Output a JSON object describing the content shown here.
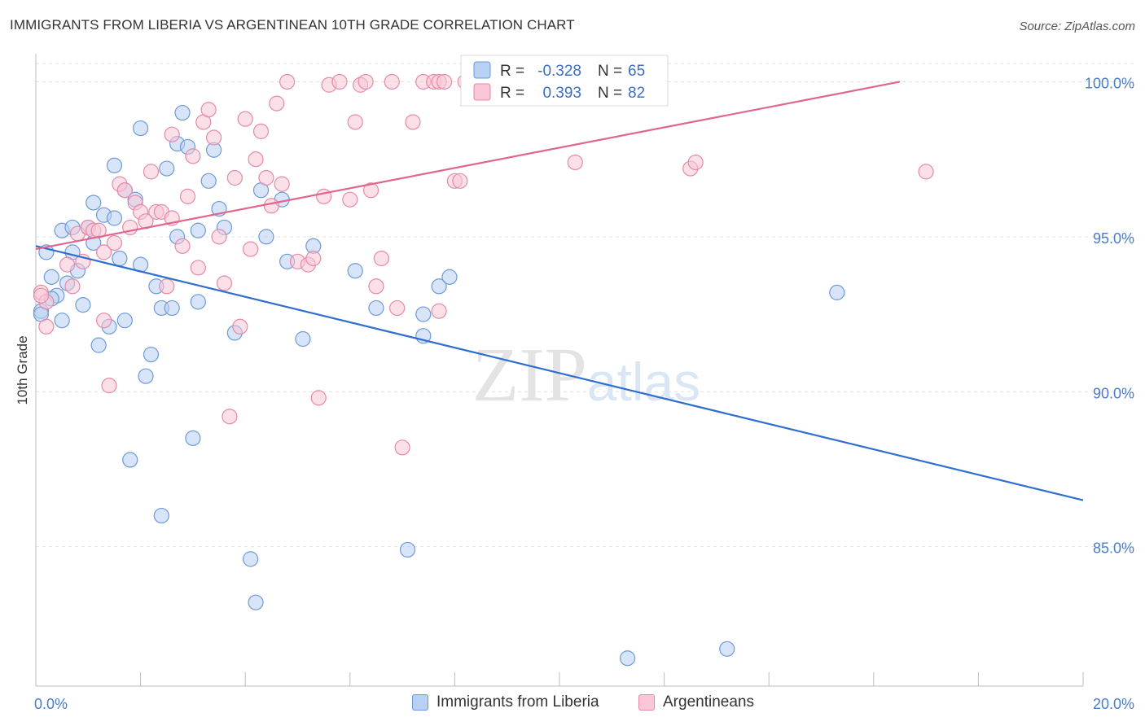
{
  "title": "IMMIGRANTS FROM LIBERIA VS ARGENTINEAN 10TH GRADE CORRELATION CHART",
  "source": "Source: ZipAtlas.com",
  "watermark": "ZIPatlas",
  "legend_box": {
    "rows": [
      {
        "r_label": "R =",
        "r_value": "-0.328",
        "n_label": "N =",
        "n_value": "65",
        "fill": "#b8d0f2",
        "stroke": "#6d9ad8"
      },
      {
        "r_label": "R =",
        "r_value": "0.393",
        "n_label": "N =",
        "n_value": "82",
        "fill": "#f8c6d6",
        "stroke": "#e58aa8"
      }
    ]
  },
  "bottom_legend": [
    {
      "label": "Immigrants from Liberia",
      "fill": "#b8d0f2",
      "stroke": "#6d9ad8"
    },
    {
      "label": "Argentineans",
      "fill": "#f8c6d6",
      "stroke": "#e58aa8"
    }
  ],
  "chart_data": {
    "type": "scatter",
    "ylabel": "10th Grade",
    "xlim": [
      0,
      20
    ],
    "ylim": [
      80.5,
      100.8
    ],
    "x_tick_labels": [
      {
        "value": 0,
        "label": "0.0%"
      },
      {
        "value": 20,
        "label": "20.0%"
      }
    ],
    "y_ticks": [
      {
        "value": 100,
        "label": "100.0%"
      },
      {
        "value": 95,
        "label": "95.0%"
      },
      {
        "value": 90,
        "label": "90.0%"
      },
      {
        "value": 85,
        "label": "85.0%"
      }
    ],
    "grid": "horizontal dashed",
    "series": [
      {
        "name": "Immigrants from Liberia",
        "color": "#6d9ad8",
        "fill": "#b8d0f2",
        "trend_color": "#2f6fcf",
        "trend": {
          "x": [
            0,
            20
          ],
          "y": [
            94.7,
            86.5
          ]
        },
        "points": [
          [
            0.1,
            92.6
          ],
          [
            0.1,
            92.5
          ],
          [
            0.2,
            94.5
          ],
          [
            0.3,
            93.7
          ],
          [
            0.4,
            93.1
          ],
          [
            0.5,
            95.2
          ],
          [
            0.5,
            92.3
          ],
          [
            0.6,
            93.5
          ],
          [
            0.7,
            94.5
          ],
          [
            0.7,
            95.3
          ],
          [
            0.8,
            93.9
          ],
          [
            0.9,
            92.8
          ],
          [
            1.0,
            95.3
          ],
          [
            1.1,
            96.1
          ],
          [
            1.1,
            94.8
          ],
          [
            1.2,
            91.5
          ],
          [
            1.3,
            95.7
          ],
          [
            1.4,
            92.1
          ],
          [
            1.5,
            95.6
          ],
          [
            1.5,
            97.3
          ],
          [
            1.6,
            94.3
          ],
          [
            1.7,
            92.3
          ],
          [
            1.7,
            96.5
          ],
          [
            1.8,
            87.8
          ],
          [
            1.9,
            96.2
          ],
          [
            2.0,
            94.1
          ],
          [
            2.0,
            98.5
          ],
          [
            2.1,
            90.5
          ],
          [
            2.2,
            91.2
          ],
          [
            2.3,
            93.4
          ],
          [
            2.4,
            92.7
          ],
          [
            2.4,
            86.0
          ],
          [
            2.5,
            97.2
          ],
          [
            2.6,
            92.7
          ],
          [
            2.7,
            95.0
          ],
          [
            2.7,
            98.0
          ],
          [
            2.8,
            99.0
          ],
          [
            2.9,
            97.9
          ],
          [
            3.0,
            88.5
          ],
          [
            3.1,
            95.2
          ],
          [
            3.1,
            92.9
          ],
          [
            3.3,
            96.8
          ],
          [
            3.4,
            97.8
          ],
          [
            3.5,
            95.9
          ],
          [
            3.6,
            95.3
          ],
          [
            3.8,
            91.9
          ],
          [
            4.1,
            84.6
          ],
          [
            4.2,
            83.2
          ],
          [
            4.3,
            96.5
          ],
          [
            4.4,
            95.0
          ],
          [
            4.7,
            96.2
          ],
          [
            4.8,
            94.2
          ],
          [
            5.1,
            91.7
          ],
          [
            5.3,
            94.7
          ],
          [
            6.1,
            93.9
          ],
          [
            6.5,
            92.7
          ],
          [
            7.1,
            84.9
          ],
          [
            7.4,
            91.8
          ],
          [
            7.4,
            92.5
          ],
          [
            7.7,
            93.4
          ],
          [
            7.9,
            93.7
          ],
          [
            11.3,
            81.4
          ],
          [
            13.2,
            81.7
          ],
          [
            15.3,
            93.2
          ],
          [
            0.3,
            93.0
          ]
        ]
      },
      {
        "name": "Argentineans",
        "color": "#e58aa8",
        "fill": "#f8c6d6",
        "trend_color": "#e06690",
        "trend": {
          "x": [
            0,
            16.5
          ],
          "y": [
            94.6,
            100.0
          ]
        },
        "points": [
          [
            0.1,
            93.2
          ],
          [
            0.2,
            92.1
          ],
          [
            0.2,
            92.9
          ],
          [
            0.6,
            94.1
          ],
          [
            0.7,
            93.4
          ],
          [
            0.8,
            95.1
          ],
          [
            0.9,
            94.2
          ],
          [
            1.0,
            95.3
          ],
          [
            1.1,
            95.2
          ],
          [
            1.3,
            94.5
          ],
          [
            1.3,
            92.3
          ],
          [
            1.4,
            90.2
          ],
          [
            1.5,
            94.8
          ],
          [
            1.6,
            96.7
          ],
          [
            1.7,
            96.5
          ],
          [
            1.8,
            95.3
          ],
          [
            1.9,
            96.1
          ],
          [
            2.0,
            95.8
          ],
          [
            2.1,
            95.5
          ],
          [
            2.2,
            97.1
          ],
          [
            2.3,
            95.8
          ],
          [
            2.4,
            95.8
          ],
          [
            2.5,
            93.4
          ],
          [
            2.6,
            98.3
          ],
          [
            2.6,
            95.6
          ],
          [
            2.8,
            94.7
          ],
          [
            2.9,
            96.3
          ],
          [
            3.0,
            97.6
          ],
          [
            3.1,
            94.0
          ],
          [
            3.2,
            98.7
          ],
          [
            3.3,
            99.1
          ],
          [
            3.4,
            98.2
          ],
          [
            3.5,
            95.0
          ],
          [
            3.6,
            93.5
          ],
          [
            3.7,
            89.2
          ],
          [
            3.8,
            96.9
          ],
          [
            3.9,
            92.1
          ],
          [
            4.0,
            98.8
          ],
          [
            4.1,
            94.6
          ],
          [
            4.2,
            97.5
          ],
          [
            4.3,
            98.4
          ],
          [
            4.4,
            96.9
          ],
          [
            4.5,
            96.0
          ],
          [
            4.6,
            99.3
          ],
          [
            4.7,
            96.7
          ],
          [
            4.8,
            100.0
          ],
          [
            5.0,
            94.2
          ],
          [
            5.2,
            94.1
          ],
          [
            5.3,
            94.3
          ],
          [
            5.4,
            89.8
          ],
          [
            5.5,
            96.3
          ],
          [
            5.6,
            99.9
          ],
          [
            5.8,
            100.0
          ],
          [
            6.0,
            96.2
          ],
          [
            6.1,
            98.7
          ],
          [
            6.2,
            99.9
          ],
          [
            6.3,
            100.0
          ],
          [
            6.4,
            96.5
          ],
          [
            6.5,
            93.4
          ],
          [
            6.6,
            94.3
          ],
          [
            6.8,
            100.0
          ],
          [
            6.9,
            92.7
          ],
          [
            7.0,
            88.2
          ],
          [
            7.2,
            98.7
          ],
          [
            7.4,
            100.0
          ],
          [
            7.6,
            100.0
          ],
          [
            7.7,
            92.6
          ],
          [
            7.7,
            100.0
          ],
          [
            7.8,
            100.0
          ],
          [
            8.0,
            96.8
          ],
          [
            8.1,
            96.8
          ],
          [
            8.2,
            100.0
          ],
          [
            8.4,
            100.0
          ],
          [
            8.6,
            100.0
          ],
          [
            8.8,
            100.0
          ],
          [
            9.0,
            100.0
          ],
          [
            10.3,
            97.4
          ],
          [
            12.5,
            97.2
          ],
          [
            12.6,
            97.4
          ],
          [
            17.0,
            97.1
          ],
          [
            0.1,
            93.1
          ],
          [
            1.2,
            95.2
          ]
        ]
      }
    ]
  }
}
